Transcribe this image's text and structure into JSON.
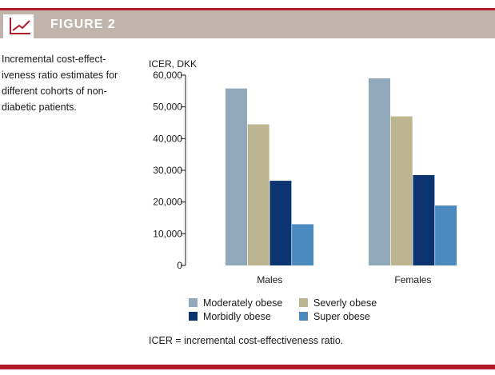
{
  "figure": {
    "label": "FIGURE 2",
    "caption": "Incremental cost-effect-iveness ratio estimates for different cohorts of non-diabetic patients.",
    "footnote": "ICER = incremental cost-effectiveness ratio.",
    "icon": "line-chart-icon",
    "accent_color": "#b31b2c",
    "band_color": "#c0b4ab"
  },
  "chart_data": {
    "type": "bar",
    "ylabel": "ICER, DKK",
    "xlabel": "",
    "ylim": [
      0,
      60000
    ],
    "yticks": [
      0,
      10000,
      20000,
      30000,
      40000,
      50000,
      60000
    ],
    "ytick_labels": [
      "0",
      "10,000",
      "20,000",
      "30,000",
      "40,000",
      "50,000",
      "60,000"
    ],
    "categories": [
      "Males",
      "Females"
    ],
    "series": [
      {
        "name": "Moderately obese",
        "color": "#91a9bb",
        "values": [
          55800,
          59000
        ]
      },
      {
        "name": "Severly obese",
        "color": "#bcb690",
        "values": [
          44500,
          47000
        ]
      },
      {
        "name": "Morbidly obese",
        "color": "#0b3470",
        "values": [
          26700,
          28500
        ]
      },
      {
        "name": "Super obese",
        "color": "#4a8abf",
        "values": [
          13000,
          18900
        ]
      }
    ],
    "grid": false,
    "legend_position": "bottom"
  }
}
